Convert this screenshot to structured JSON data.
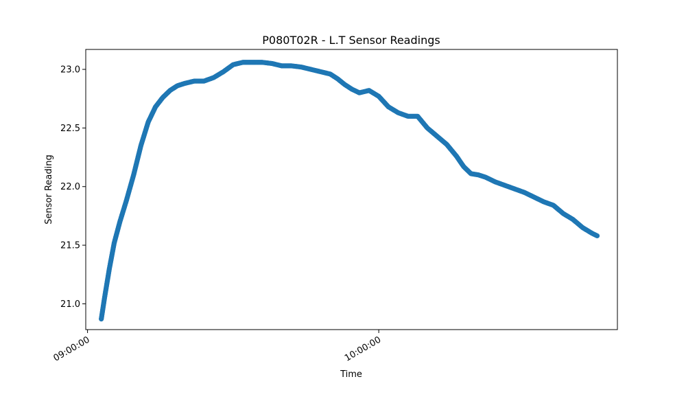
{
  "chart_data": {
    "type": "scatter",
    "title": "P080T02R - L.T Sensor Readings",
    "xlabel": "Time",
    "ylabel": "Sensor Reading",
    "xlim": [
      "08:59:38",
      "10:49:10"
    ],
    "ylim": [
      20.78,
      23.17
    ],
    "x_ticks": [
      "09:00:00",
      "10:00:00"
    ],
    "y_ticks": [
      21.0,
      21.5,
      22.0,
      22.5,
      23.0
    ],
    "y_tick_labels": [
      "21.0",
      "21.5",
      "22.0",
      "22.5",
      "23.0"
    ],
    "grid": false,
    "marker_color": "#1f77b4",
    "series": [
      {
        "x": [
          "09:02:50",
          "09:03:30",
          "09:04:30",
          "09:05:30",
          "09:06:40",
          "09:08:00",
          "09:09:30",
          "09:11:00",
          "09:12:30",
          "09:14:00",
          "09:15:30",
          "09:17:00",
          "09:18:30",
          "09:20:00",
          "09:22:00",
          "09:24:00",
          "09:26:00",
          "09:28:00",
          "09:30:00",
          "09:32:00",
          "09:34:00",
          "09:36:00",
          "09:38:00",
          "09:40:00",
          "09:42:00",
          "09:44:00",
          "09:46:00",
          "09:48:00",
          "09:50:00",
          "09:51:30",
          "09:53:00",
          "09:54:30",
          "09:56:00",
          "09:58:00",
          "10:00:00",
          "10:02:00",
          "10:04:00",
          "10:06:00",
          "10:08:00",
          "10:10:00",
          "10:12:00",
          "10:14:00",
          "10:16:00",
          "10:17:30",
          "10:19:00",
          "10:20:30",
          "10:22:00",
          "10:24:00",
          "10:26:00",
          "10:28:00",
          "10:30:00",
          "10:32:00",
          "10:34:00",
          "10:36:00",
          "10:38:00",
          "10:40:00",
          "10:42:00",
          "10:44:00",
          "10:45:00"
        ],
        "y": [
          20.87,
          21.05,
          21.3,
          21.52,
          21.7,
          21.88,
          22.1,
          22.35,
          22.55,
          22.68,
          22.76,
          22.82,
          22.86,
          22.88,
          22.9,
          22.9,
          22.93,
          22.98,
          23.04,
          23.06,
          23.06,
          23.06,
          23.05,
          23.03,
          23.03,
          23.02,
          23.0,
          22.98,
          22.96,
          22.92,
          22.87,
          22.83,
          22.8,
          22.82,
          22.77,
          22.68,
          22.63,
          22.6,
          22.6,
          22.5,
          22.43,
          22.36,
          22.26,
          22.17,
          22.11,
          22.1,
          22.08,
          22.04,
          22.01,
          21.98,
          21.95,
          21.91,
          21.87,
          21.84,
          21.77,
          21.72,
          21.65,
          21.6,
          21.58
        ]
      }
    ]
  }
}
